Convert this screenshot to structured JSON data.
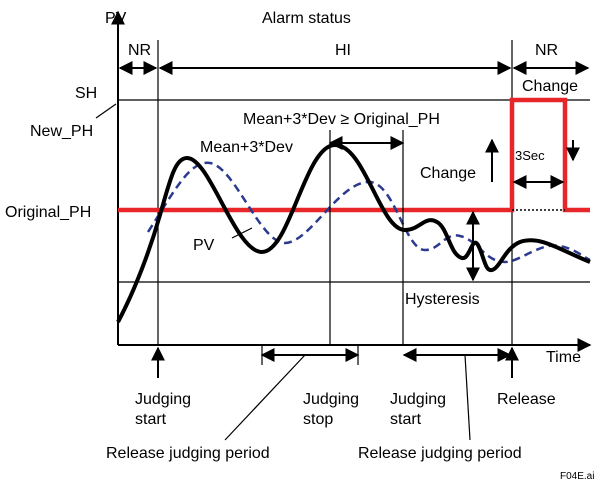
{
  "axis": {
    "y_label": "PV",
    "x_label": "Time"
  },
  "status": {
    "title": "Alarm status",
    "segments": [
      "NR",
      "HI",
      "NR"
    ]
  },
  "levels": {
    "sh": "SH",
    "new_ph": "New_PH",
    "original_ph": "Original_PH"
  },
  "annotations": {
    "condition": "Mean+3*Dev ≥ Original_PH",
    "mean_curve": "Mean+3*Dev",
    "pv_curve": "PV",
    "change_top": "Change",
    "change_mid": "Change",
    "delay": "3Sec",
    "hysteresis": "Hysteresis"
  },
  "events": {
    "judging_start_1": [
      "Judging",
      "start"
    ],
    "judging_stop": [
      "Judging",
      "stop"
    ],
    "judging_start_2": [
      "Judging",
      "start"
    ],
    "release": "Release",
    "release_period_1": "Release judging period",
    "release_period_2": "Release judging period"
  },
  "figure_id": "F04E.ai"
}
